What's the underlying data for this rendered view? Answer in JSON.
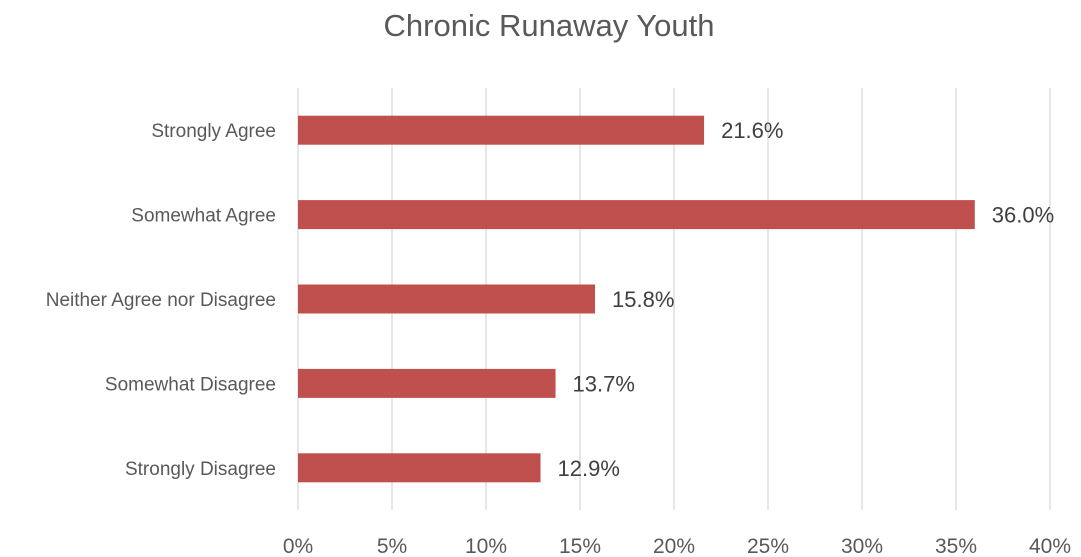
{
  "chart_data": {
    "type": "bar",
    "orientation": "horizontal",
    "title": "Chronic Runaway Youth",
    "categories": [
      "Strongly Agree",
      "Somewhat Agree",
      "Neither Agree nor Disagree",
      "Somewhat Disagree",
      "Strongly Disagree"
    ],
    "values": [
      21.6,
      36.0,
      15.8,
      13.7,
      12.9
    ],
    "data_labels": [
      "21.6%",
      "36.0%",
      "15.8%",
      "13.7%",
      "12.9%"
    ],
    "xlim": [
      0,
      40
    ],
    "xticks": [
      "0%",
      "5%",
      "10%",
      "15%",
      "20%",
      "25%",
      "30%",
      "35%",
      "40%"
    ],
    "xlabel": "",
    "ylabel": "",
    "grid": "vertical",
    "bar_color": "#c0504d"
  }
}
